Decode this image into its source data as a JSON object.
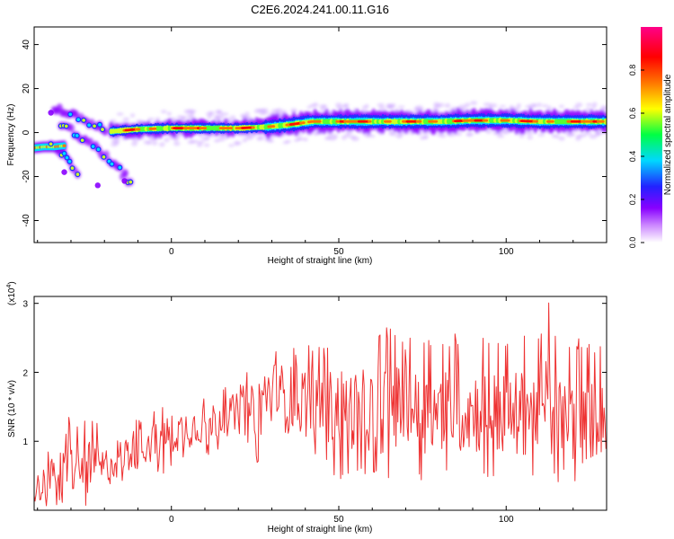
{
  "figure": {
    "title": "C2E6.2024.241.00.11.G16"
  },
  "chart_data": [
    {
      "type": "heatmap",
      "xlabel": "Height of straight line (km)",
      "ylabel": "Frequency (Hz)",
      "xlim": [
        -41,
        130
      ],
      "ylim": [
        -50,
        48
      ],
      "x_ticks": [
        0,
        50,
        100
      ],
      "y_ticks": [
        -40,
        -20,
        0,
        20,
        40
      ],
      "grid": false,
      "colorbar": {
        "label": "Normalized spectral amplitude",
        "range": [
          0,
          1
        ],
        "ticks": [
          0.0,
          0.2,
          0.4,
          0.6,
          0.8
        ],
        "colors": [
          "#ffffff",
          "#8800ff",
          "#2222ff",
          "#00d8ff",
          "#00ff44",
          "#ffff00",
          "#ff7700",
          "#ff0000",
          "#ff0088"
        ]
      },
      "main_band": {
        "x": [
          -18,
          -10,
          0,
          10,
          20,
          28,
          35,
          42,
          50,
          60,
          70,
          80,
          90,
          100,
          110,
          120,
          130
        ],
        "y": [
          0.5,
          1.5,
          2,
          2,
          2,
          2.5,
          3.5,
          5,
          5,
          5,
          5,
          5,
          5.5,
          5.5,
          5,
          5,
          5
        ]
      },
      "early_band": {
        "x": [
          -41,
          -38,
          -35,
          -32
        ],
        "y": [
          -7,
          -6.5,
          -6.5,
          -6
        ]
      },
      "diverging_branches": [
        {
          "x": [
            -35,
            -27,
            -19
          ],
          "y": [
            11,
            6,
            1
          ]
        },
        {
          "x": [
            -33,
            -25,
            -18,
            -12
          ],
          "y": [
            4,
            -4,
            -13,
            -23
          ]
        },
        {
          "x": [
            -36,
            -28
          ],
          "y": [
            -4,
            -18
          ]
        }
      ]
    },
    {
      "type": "line",
      "xlabel": "Height of straight line (km)",
      "ylabel": "SNR (10 * v/v)",
      "y_multiplier_label": "(x10",
      "y_multiplier_exp": "4",
      "xlim": [
        -41,
        130
      ],
      "ylim": [
        0,
        3.1
      ],
      "x_ticks": [
        0,
        50,
        100
      ],
      "y_ticks": [
        1,
        2,
        3
      ],
      "grid": false,
      "color": "#ee3333",
      "series": [
        {
          "x": [
            -41,
            -35,
            -30,
            -25,
            -20,
            -15,
            -10,
            -5,
            0,
            5,
            10,
            15,
            20,
            25,
            28,
            30,
            35,
            40,
            45,
            50,
            55,
            60,
            63,
            65,
            70,
            75,
            80,
            85,
            90,
            95,
            100,
            105,
            108,
            110,
            113,
            115,
            120,
            125,
            128,
            130
          ],
          "y": [
            0.3,
            0.5,
            0.6,
            0.6,
            0.6,
            0.8,
            0.9,
            1.0,
            1.1,
            1.2,
            1.25,
            1.35,
            1.4,
            1.45,
            1.6,
            1.7,
            1.6,
            1.6,
            1.5,
            1.5,
            1.45,
            1.45,
            1.5,
            1.5,
            1.5,
            1.4,
            1.45,
            1.45,
            1.45,
            1.45,
            1.35,
            1.4,
            1.6,
            1.5,
            1.45,
            1.35,
            1.3,
            1.3,
            1.3,
            1.35
          ],
          "envelope_high": [
            0.8,
            1.1,
            1.4,
            1.5,
            1.2,
            1.25,
            1.4,
            1.45,
            1.6,
            1.7,
            1.7,
            1.8,
            1.9,
            2.1,
            2.1,
            2.3,
            2.3,
            2.6,
            2.4,
            2.5,
            2.5,
            2.5,
            2.85,
            2.7,
            2.5,
            2.5,
            2.5,
            2.6,
            2.7,
            2.5,
            2.6,
            2.5,
            2.9,
            2.7,
            3.1,
            2.5,
            2.55,
            2.6,
            2.4,
            2.5
          ],
          "envelope_low": [
            0.05,
            0.05,
            0.05,
            0.05,
            0.1,
            0.2,
            0.3,
            0.4,
            0.5,
            0.6,
            0.7,
            0.75,
            0.8,
            0.7,
            0.25,
            0.5,
            0.5,
            0.6,
            0.55,
            0.4,
            0.4,
            0.35,
            0.35,
            0.3,
            0.35,
            0.4,
            0.35,
            0.35,
            0.35,
            0.35,
            0.3,
            0.2,
            0.3,
            0.25,
            0.2,
            0.4,
            0.4,
            0.5,
            0.5,
            0.6
          ]
        }
      ]
    }
  ]
}
